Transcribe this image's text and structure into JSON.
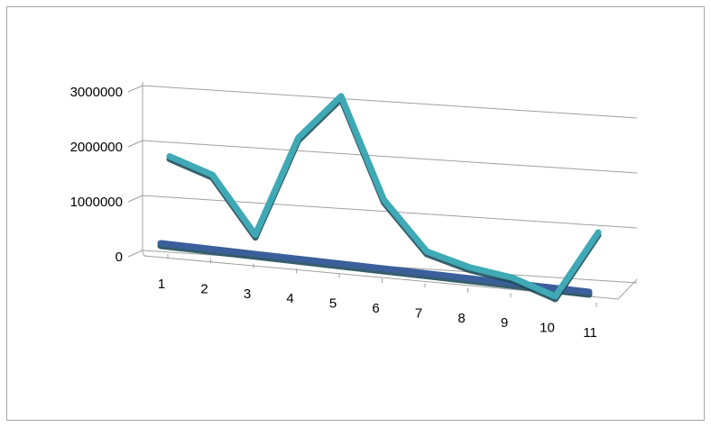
{
  "chart_data": {
    "type": "line",
    "projection": "3d",
    "title": "",
    "xlabel": "",
    "ylabel": "",
    "categories": [
      "1",
      "2",
      "3",
      "4",
      "5",
      "6",
      "7",
      "8",
      "9",
      "10",
      "11"
    ],
    "ylim": [
      0,
      3000000
    ],
    "y_ticks": [
      "0",
      "1000000",
      "2000000",
      "3000000"
    ],
    "grid": true,
    "legend": "none",
    "series": [
      {
        "values": [
          0,
          0,
          0,
          0,
          0,
          0,
          0,
          0,
          0,
          0,
          0
        ],
        "color": "#3a5f9a"
      },
      {
        "values": [
          1450000,
          1200000,
          200000,
          2050000,
          2900000,
          1100000,
          250000,
          50000,
          -50000,
          -300000,
          950000
        ],
        "color": "#3fa9b5"
      }
    ]
  }
}
